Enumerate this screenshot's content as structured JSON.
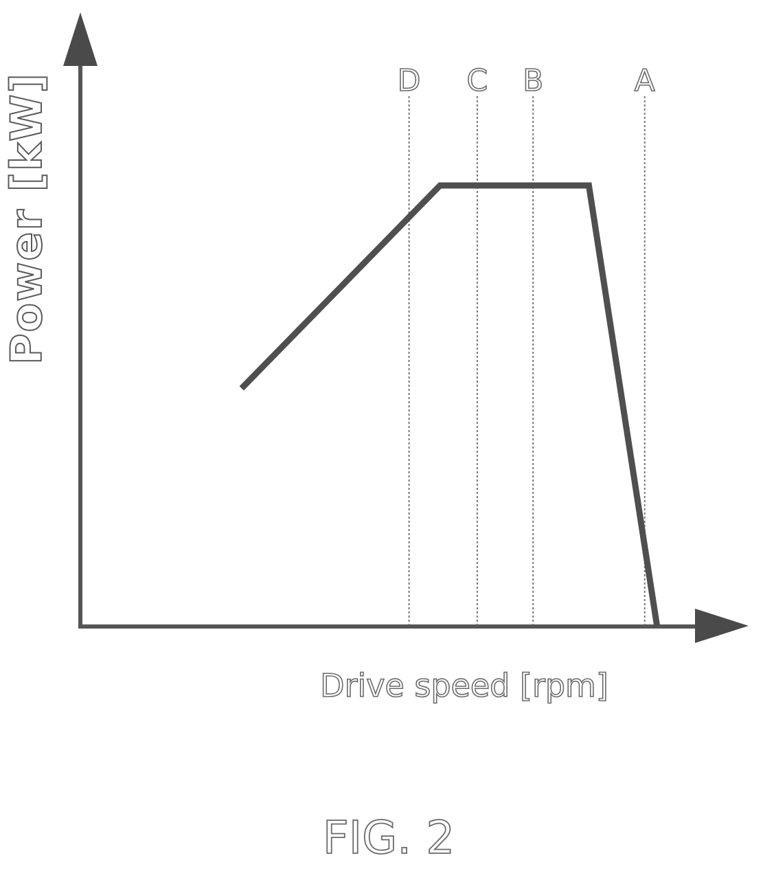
{
  "chart_data": {
    "type": "line",
    "xlabel": "Drive speed [rpm]",
    "ylabel": "Power [kW]",
    "caption": "FIG. 2",
    "xlim": [
      0,
      100
    ],
    "ylim": [
      0,
      100
    ],
    "grid": false,
    "series": [
      {
        "x": [
          26,
          58,
          82,
          93
        ],
        "y": [
          54,
          100,
          100,
          0
        ]
      }
    ],
    "reference_lines": [
      {
        "label": "D",
        "x": 53
      },
      {
        "label": "C",
        "x": 64
      },
      {
        "label": "B",
        "x": 73
      },
      {
        "label": "A",
        "x": 91
      }
    ]
  }
}
